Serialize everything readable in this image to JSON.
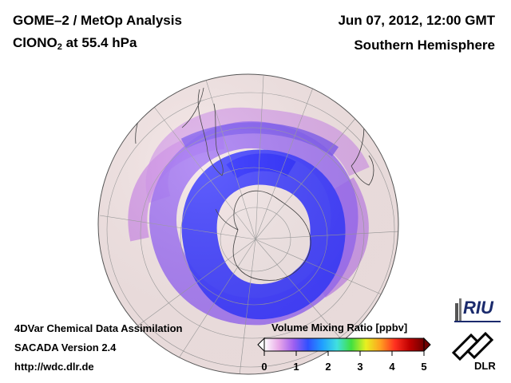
{
  "header": {
    "title_line1": "GOME–2 / MetOp Analysis",
    "species": "ClONO",
    "species_sub": "2",
    "level_text": " at 55.4 hPa",
    "date": "Jun 07, 2012, 12:00 GMT",
    "hemisphere": "Southern Hemisphere"
  },
  "footer": {
    "line1": "4DVar Chemical Data Assimilation",
    "line2": "SACADA Version 2.4",
    "line3": "http://wdc.dlr.de"
  },
  "colorbar": {
    "title": "Volume Mixing Ratio [ppbv]",
    "min": 0,
    "max": 5,
    "ticks": [
      "0",
      "1",
      "2",
      "3",
      "4",
      "5"
    ],
    "colors": [
      "#ffffff",
      "#e8a8e8",
      "#a060f0",
      "#3050ff",
      "#20a0ff",
      "#40e0e0",
      "#40e040",
      "#e8f020",
      "#ffa020",
      "#ff3020",
      "#c00000",
      "#700000"
    ]
  },
  "map_colors": {
    "background": "#f5e6e6",
    "ozone_hole_blue": "#3a3aff",
    "band_purple": "#9a6af5",
    "pink": "#e6b4ec"
  },
  "logos": {
    "riu": "RIU",
    "dlr": "DLR"
  }
}
